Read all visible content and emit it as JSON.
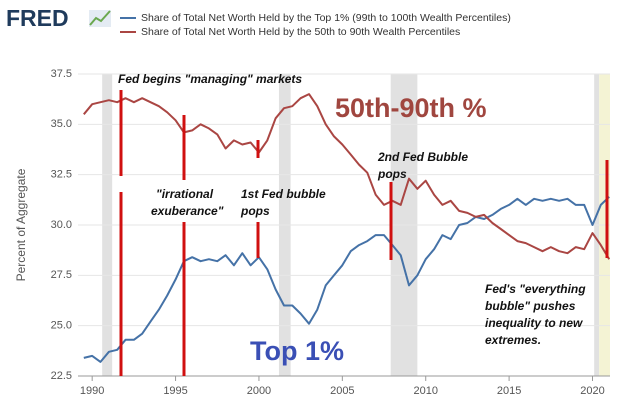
{
  "chart_data": {
    "type": "line",
    "logo": "FRED",
    "y_label": "Percent of Aggregate",
    "x": [
      1989.5,
      1990,
      1990.5,
      1991,
      1991.5,
      1992,
      1992.5,
      1993,
      1993.5,
      1994,
      1994.5,
      1995,
      1995.5,
      1996,
      1996.5,
      1997,
      1997.5,
      1998,
      1998.5,
      1999,
      1999.5,
      2000,
      2000.5,
      2001,
      2001.5,
      2002,
      2002.5,
      2003,
      2003.5,
      2004,
      2004.5,
      2005,
      2005.5,
      2006,
      2006.5,
      2007,
      2007.5,
      2008,
      2008.5,
      2009,
      2009.5,
      2010,
      2010.5,
      2011,
      2011.5,
      2012,
      2012.5,
      2013,
      2013.5,
      2014,
      2014.5,
      2015,
      2015.5,
      2016,
      2016.5,
      2017,
      2017.5,
      2018,
      2018.5,
      2019,
      2019.5,
      2020,
      2020.5,
      2021
    ],
    "series": [
      {
        "name": "Share of Total Net Worth Held by the Top 1% (99th to 100th Wealth Percentiles)",
        "color": "#4572a7",
        "values": [
          23.4,
          23.5,
          23.2,
          23.7,
          23.8,
          24.3,
          24.3,
          24.6,
          25.2,
          25.8,
          26.5,
          27.3,
          28.2,
          28.4,
          28.2,
          28.3,
          28.2,
          28.5,
          28.0,
          28.6,
          28.0,
          28.4,
          27.8,
          26.8,
          26.0,
          26.0,
          25.6,
          25.1,
          25.8,
          27.0,
          27.5,
          28.0,
          28.7,
          29.0,
          29.2,
          29.5,
          29.5,
          29.0,
          28.5,
          27.0,
          27.5,
          28.3,
          28.8,
          29.5,
          29.3,
          30.0,
          30.1,
          30.4,
          30.3,
          30.5,
          30.8,
          31.0,
          31.3,
          31.0,
          31.3,
          31.2,
          31.3,
          31.2,
          31.3,
          31.0,
          31.0,
          30.0,
          31.0,
          31.4
        ]
      },
      {
        "name": "Share of Total Net Worth Held by the 50th to 90th Wealth Percentiles",
        "color": "#aa4643",
        "values": [
          35.5,
          36.0,
          36.1,
          36.2,
          36.1,
          36.3,
          36.1,
          36.3,
          36.1,
          35.9,
          35.6,
          35.2,
          34.6,
          34.7,
          35.0,
          34.8,
          34.5,
          33.8,
          34.2,
          34.0,
          34.1,
          33.6,
          34.2,
          35.3,
          35.8,
          35.9,
          36.3,
          36.5,
          35.9,
          35.0,
          34.4,
          34.0,
          33.5,
          33.0,
          32.6,
          31.5,
          31.0,
          31.2,
          31.0,
          32.3,
          31.8,
          32.2,
          31.5,
          31.0,
          31.2,
          30.7,
          30.6,
          30.4,
          30.5,
          30.1,
          29.8,
          29.5,
          29.2,
          29.1,
          28.9,
          28.7,
          28.9,
          28.7,
          28.6,
          28.9,
          28.8,
          29.6,
          29.0,
          28.3
        ]
      }
    ],
    "recessions": [
      [
        1990.6,
        1991.2
      ],
      [
        2001.2,
        2001.9
      ],
      [
        2007.9,
        2009.5
      ],
      [
        2020.1,
        2020.4
      ]
    ],
    "highlight": [
      2020.4,
      2021.05
    ],
    "xlim": [
      1989.15,
      2021.05
    ],
    "xticks": [
      1990,
      1995,
      2000,
      2005,
      2010,
      2015,
      2020
    ],
    "ylim": [
      22.5,
      37.5
    ],
    "yticks": [
      {
        "value": 22.5,
        "label": "22.5"
      },
      {
        "value": 25,
        "label": "25.0"
      },
      {
        "value": 27.5,
        "label": "27.5"
      },
      {
        "value": 30,
        "label": "30.0"
      },
      {
        "value": 32.5,
        "label": "32.5"
      },
      {
        "value": 35,
        "label": "35.0"
      },
      {
        "value": 37.5,
        "label": "37.5"
      }
    ],
    "grid": true,
    "annotations": {
      "fed_begins": "Fed begins \"managing\" markets",
      "irrational": [
        "\"irrational",
        "exuberance\""
      ],
      "first_bubble": [
        "1st Fed bubble",
        "pops"
      ],
      "second_bubble": [
        "2nd Fed Bubble",
        "pops"
      ],
      "everything": [
        "Fed's \"everything",
        "bubble\" pushes",
        "inequality to new",
        "extremes."
      ],
      "label_50_90": "50th-90th %",
      "label_top1": "Top 1%"
    }
  }
}
